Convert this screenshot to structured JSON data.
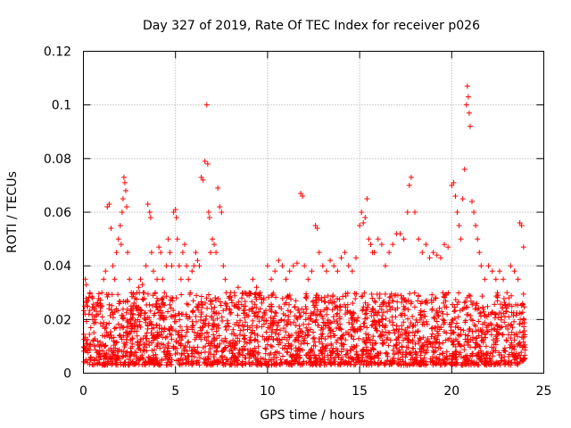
{
  "chart_data": {
    "type": "scatter",
    "title": "Day 327 of 2019, Rate Of TEC Index for receiver p026",
    "xlabel": "GPS time / hours",
    "ylabel": "ROTI / TECUs",
    "xlim": [
      0,
      25
    ],
    "ylim": [
      0,
      0.12
    ],
    "xticks": [
      0,
      5,
      10,
      15,
      20,
      25
    ],
    "xtick_labels": [
      "0",
      "5",
      "10",
      "15",
      "20",
      "25"
    ],
    "yticks": [
      0,
      0.02,
      0.04,
      0.06,
      0.08,
      0.1,
      0.12
    ],
    "ytick_labels": [
      "0",
      "0.02",
      "0.04",
      "0.06",
      "0.08",
      "0.1",
      "0.12"
    ],
    "grid": true,
    "marker": "+",
    "marker_color": "#ff0000",
    "series": [
      {
        "name": "ROTI",
        "x": [
          0.1,
          0.15,
          0.2,
          0.3,
          0.35,
          0.5,
          0.6,
          0.7,
          0.8,
          0.9,
          1.0,
          1.1,
          1.2,
          1.3,
          1.4,
          1.5,
          1.6,
          1.7,
          1.8,
          1.9,
          2.0,
          2.05,
          2.1,
          2.15,
          2.2,
          2.25,
          2.3,
          2.35,
          2.4,
          2.5,
          2.6,
          2.7,
          2.8,
          2.9,
          3.0,
          3.1,
          3.2,
          3.3,
          3.4,
          3.5,
          3.6,
          3.65,
          3.7,
          3.8,
          3.9,
          4.0,
          4.1,
          4.2,
          4.3,
          4.4,
          4.5,
          4.6,
          4.7,
          4.8,
          4.9,
          5.0,
          5.05,
          5.1,
          5.2,
          5.3,
          5.4,
          5.5,
          5.6,
          5.7,
          5.8,
          5.9,
          6.0,
          6.1,
          6.2,
          6.3,
          6.4,
          6.5,
          6.6,
          6.7,
          6.75,
          6.8,
          6.85,
          6.9,
          7.0,
          7.1,
          7.2,
          7.3,
          7.4,
          7.5,
          7.6,
          7.7,
          7.75,
          7.8,
          7.9,
          8.0,
          8.2,
          8.4,
          8.6,
          8.8,
          9.0,
          9.2,
          9.4,
          9.6,
          9.8,
          10.0,
          10.2,
          10.4,
          10.6,
          10.8,
          11.0,
          11.2,
          11.4,
          11.6,
          11.8,
          11.9,
          12.0,
          12.2,
          12.4,
          12.6,
          12.7,
          12.8,
          13.0,
          13.2,
          13.4,
          13.6,
          13.8,
          14.0,
          14.2,
          14.4,
          14.6,
          14.8,
          15.0,
          15.1,
          15.2,
          15.3,
          15.4,
          15.5,
          15.6,
          15.7,
          15.8,
          16.0,
          16.2,
          16.4,
          16.6,
          16.8,
          17.0,
          17.2,
          17.4,
          17.6,
          17.7,
          17.8,
          18.0,
          18.2,
          18.4,
          18.6,
          18.8,
          19.0,
          19.2,
          19.4,
          19.6,
          19.8,
          20.0,
          20.1,
          20.2,
          20.3,
          20.4,
          20.5,
          20.6,
          20.7,
          20.8,
          20.85,
          20.9,
          20.95,
          21.0,
          21.1,
          21.2,
          21.3,
          21.4,
          21.5,
          21.6,
          21.8,
          22.0,
          22.2,
          22.4,
          22.6,
          22.8,
          23.0,
          23.2,
          23.4,
          23.6,
          23.7,
          23.8,
          23.9
        ],
        "y": [
          0.035,
          0.033,
          0.025,
          0.022,
          0.03,
          0.028,
          0.02,
          0.025,
          0.022,
          0.026,
          0.03,
          0.035,
          0.038,
          0.062,
          0.063,
          0.054,
          0.04,
          0.035,
          0.045,
          0.05,
          0.055,
          0.048,
          0.06,
          0.065,
          0.073,
          0.071,
          0.068,
          0.062,
          0.045,
          0.035,
          0.03,
          0.025,
          0.028,
          0.03,
          0.032,
          0.035,
          0.033,
          0.03,
          0.04,
          0.063,
          0.06,
          0.058,
          0.045,
          0.038,
          0.03,
          0.035,
          0.047,
          0.045,
          0.035,
          0.03,
          0.04,
          0.05,
          0.045,
          0.04,
          0.06,
          0.061,
          0.058,
          0.05,
          0.04,
          0.035,
          0.045,
          0.048,
          0.04,
          0.035,
          0.03,
          0.038,
          0.04,
          0.045,
          0.042,
          0.04,
          0.073,
          0.072,
          0.079,
          0.1,
          0.078,
          0.06,
          0.058,
          0.045,
          0.05,
          0.048,
          0.045,
          0.069,
          0.062,
          0.06,
          0.04,
          0.035,
          0.03,
          0.025,
          0.028,
          0.03,
          0.03,
          0.032,
          0.028,
          0.025,
          0.03,
          0.035,
          0.032,
          0.03,
          0.028,
          0.04,
          0.035,
          0.038,
          0.042,
          0.04,
          0.035,
          0.038,
          0.04,
          0.041,
          0.067,
          0.066,
          0.04,
          0.035,
          0.038,
          0.055,
          0.054,
          0.045,
          0.04,
          0.038,
          0.042,
          0.04,
          0.038,
          0.043,
          0.045,
          0.04,
          0.038,
          0.043,
          0.055,
          0.06,
          0.056,
          0.058,
          0.065,
          0.05,
          0.048,
          0.045,
          0.045,
          0.05,
          0.048,
          0.04,
          0.045,
          0.048,
          0.052,
          0.052,
          0.05,
          0.06,
          0.07,
          0.073,
          0.06,
          0.05,
          0.045,
          0.048,
          0.043,
          0.045,
          0.044,
          0.043,
          0.048,
          0.047,
          0.07,
          0.071,
          0.066,
          0.06,
          0.055,
          0.05,
          0.065,
          0.076,
          0.1,
          0.107,
          0.103,
          0.097,
          0.092,
          0.064,
          0.06,
          0.055,
          0.05,
          0.045,
          0.04,
          0.035,
          0.04,
          0.038,
          0.035,
          0.038,
          0.035,
          0.03,
          0.04,
          0.038,
          0.035,
          0.056,
          0.055,
          0.047
        ]
      }
    ],
    "baseline_band": {
      "min": 0.003,
      "max": 0.03
    }
  }
}
